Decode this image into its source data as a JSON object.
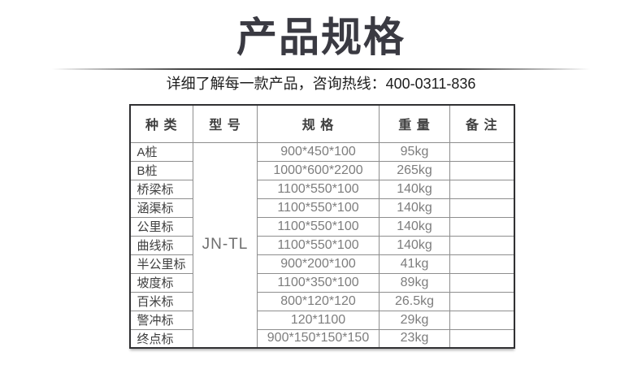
{
  "page": {
    "title": "产品规格",
    "subtitle": "详细了解每一款产品，咨询热线：400-0311-836",
    "hotline": "400-0311-836"
  },
  "colors": {
    "title_text": "#3a3a42",
    "subtitle_text": "#1d1d1d",
    "table_outer_border": "#303032",
    "table_inner_border": "#8e8e8e",
    "category_text": "#3d3d3d",
    "value_text": "#7d7d7d"
  },
  "table": {
    "headers": [
      "种 类",
      "型 号",
      "规 格",
      "重 量",
      "备 注"
    ],
    "model": "JN-TL",
    "rows": [
      {
        "category": "A桩",
        "spec": "900*450*100",
        "weight": "95kg",
        "remark": ""
      },
      {
        "category": "B桩",
        "spec": "1000*600*2200",
        "weight": "265kg",
        "remark": ""
      },
      {
        "category": "桥梁标",
        "spec": "1100*550*100",
        "weight": "140kg",
        "remark": ""
      },
      {
        "category": "涵渠标",
        "spec": "1100*550*100",
        "weight": "140kg",
        "remark": ""
      },
      {
        "category": "公里标",
        "spec": "1100*550*100",
        "weight": "140kg",
        "remark": ""
      },
      {
        "category": "曲线标",
        "spec": "1100*550*100",
        "weight": "140kg",
        "remark": ""
      },
      {
        "category": "半公里标",
        "spec": "900*200*100",
        "weight": "41kg",
        "remark": ""
      },
      {
        "category": "坡度标",
        "spec": "1100*350*100",
        "weight": "89kg",
        "remark": ""
      },
      {
        "category": "百米标",
        "spec": "800*120*120",
        "weight": "26.5kg",
        "remark": ""
      },
      {
        "category": "警冲标",
        "spec": "120*1100",
        "weight": "29kg",
        "remark": ""
      },
      {
        "category": "终点标",
        "spec": "900*150*150*150",
        "weight": "23kg",
        "remark": ""
      }
    ]
  }
}
